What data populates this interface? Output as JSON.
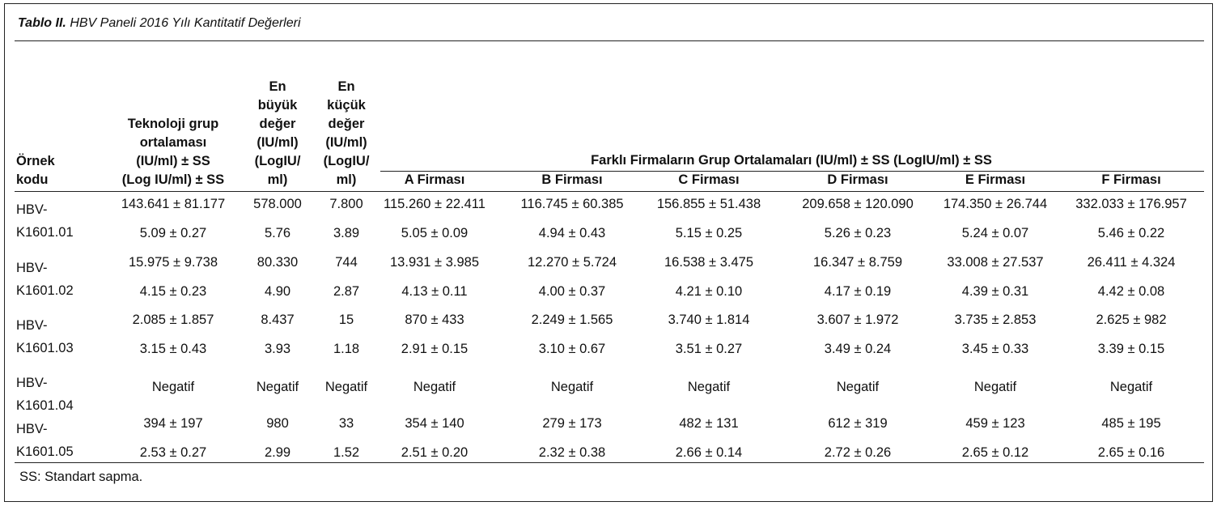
{
  "caption": {
    "label": "Tablo II.",
    "title": "HBV Paneli 2016 Yılı Kantitatif Değerleri"
  },
  "headers": {
    "sample": [
      "Örnek",
      "kodu"
    ],
    "tech_avg": [
      "Teknoloji grup",
      "ortalaması",
      "(IU/ml) ± SS",
      "(Log IU/ml) ± SS"
    ],
    "max": [
      "En",
      "büyük",
      "değer",
      "(IU/ml)",
      "(LogIU/",
      "ml)"
    ],
    "min": [
      "En",
      "küçük",
      "değer",
      "(IU/ml)",
      "(LogIU/",
      "ml)"
    ],
    "group_title": "Farklı Firmaların Grup Ortalamaları (IU/ml) ± SS (LogIU/ml) ± SS",
    "firms": [
      "A Firması",
      "B Firması",
      "C Firması",
      "D Firması",
      "E Firması",
      "F Firması"
    ]
  },
  "rows": [
    {
      "code": [
        "HBV-",
        "K1601.01"
      ],
      "iu": [
        "143.641 ± 81.177",
        "578.000",
        "7.800",
        "115.260 ± 22.411",
        "116.745 ± 60.385",
        "156.855 ± 51.438",
        "209.658 ± 120.090",
        "174.350 ± 26.744",
        "332.033 ± 176.957"
      ],
      "log": [
        "5.09 ± 0.27",
        "5.76",
        "3.89",
        "5.05 ± 0.09",
        "4.94 ± 0.43",
        "5.15 ± 0.25",
        "5.26 ± 0.23",
        "5.24 ± 0.07",
        "5.46 ± 0.22"
      ]
    },
    {
      "code": [
        "HBV-",
        "K1601.02"
      ],
      "iu": [
        "15.975 ± 9.738",
        "80.330",
        "744",
        "13.931 ± 3.985",
        "12.270 ± 5.724",
        "16.538 ± 3.475",
        "16.347 ± 8.759",
        "33.008 ± 27.537",
        "26.411 ± 4.324"
      ],
      "log": [
        "4.15 ± 0.23",
        "4.90",
        "2.87",
        "4.13 ± 0.11",
        "4.00 ± 0.37",
        "4.21 ± 0.10",
        "4.17 ± 0.19",
        "4.39 ± 0.31",
        "4.42 ± 0.08"
      ]
    },
    {
      "code": [
        "HBV-",
        "K1601.03"
      ],
      "iu": [
        "2.085 ± 1.857",
        "8.437",
        "15",
        "870 ± 433",
        "2.249 ± 1.565",
        "3.740 ± 1.814",
        "3.607 ± 1.972",
        "3.735 ± 2.853",
        "2.625 ± 982"
      ],
      "log": [
        "3.15 ± 0.43",
        "3.93",
        "1.18",
        "2.91 ± 0.15",
        "3.10 ± 0.67",
        "3.51 ± 0.27",
        "3.49 ± 0.24",
        "3.45 ± 0.33",
        "3.39 ± 0.15"
      ]
    },
    {
      "code": [
        "HBV-",
        "K1601.04"
      ],
      "iu": [
        "Negatif",
        "Negatif",
        "Negatif",
        "Negatif",
        "Negatif",
        "Negatif",
        "Negatif",
        "Negatif",
        "Negatif"
      ],
      "log": []
    },
    {
      "code": [
        "HBV-",
        "K1601.05"
      ],
      "iu": [
        "394 ± 197",
        "980",
        "33",
        "354 ± 140",
        "279 ± 173",
        "482 ± 131",
        "612 ± 319",
        "459 ± 123",
        "485 ± 195"
      ],
      "log": [
        "2.53 ± 0.27",
        "2.99",
        "1.52",
        "2.51 ± 0.20",
        "2.32 ± 0.38",
        "2.66 ± 0.14",
        "2.72 ± 0.26",
        "2.65 ± 0.12",
        "2.65 ± 0.16"
      ]
    }
  ],
  "footnote": "SS: Standart sapma."
}
